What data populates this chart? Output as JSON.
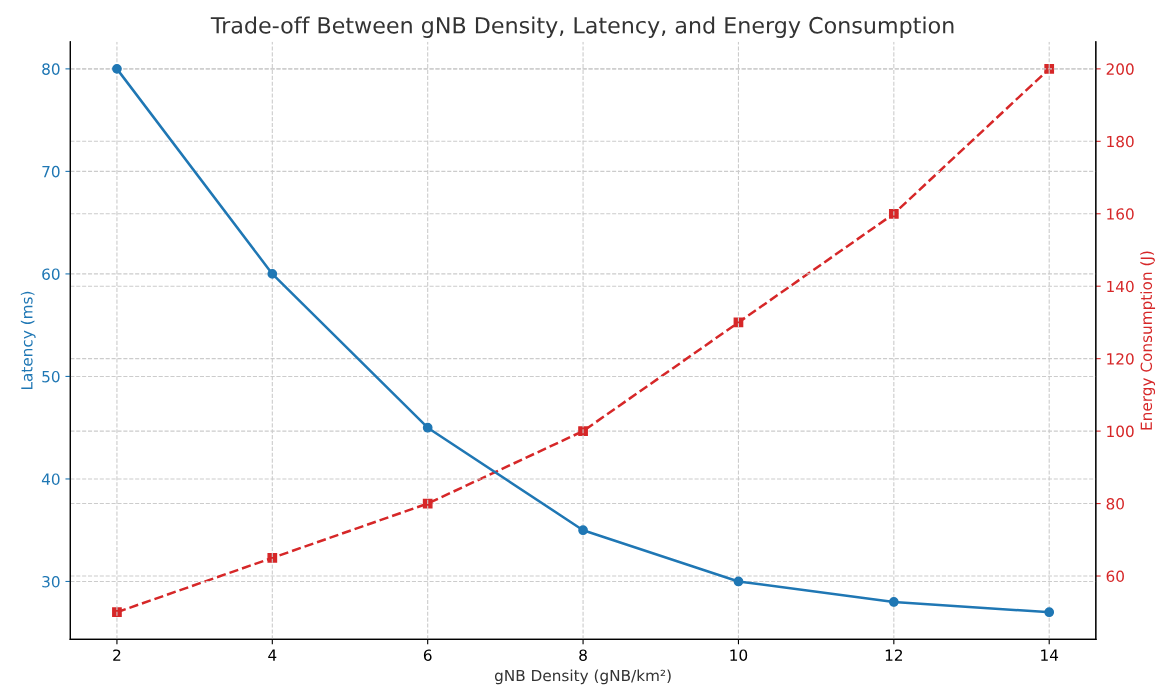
{
  "chart_data": {
    "type": "line",
    "title": "Trade-off Between gNB Density, Latency, and Energy Consumption",
    "xlabel": "gNB Density (gNB/km²)",
    "ylabel": "Latency (ms)",
    "y2label": "Energy Consumption (J)",
    "x": [
      2,
      4,
      6,
      8,
      10,
      12,
      14
    ],
    "series": [
      {
        "color": "#1f77b4",
        "values": [
          80,
          60,
          45,
          35,
          30,
          28,
          27
        ],
        "marker": "circle",
        "line_style": "solid"
      },
      {
        "color": "#d62728",
        "values": [
          50,
          65,
          80,
          100,
          130,
          160,
          200
        ],
        "marker": "square",
        "line_style": "dashed",
        "axis": "y2"
      }
    ],
    "xlim": [
      1.4,
      14.6
    ],
    "xticks": [
      2,
      4,
      6,
      8,
      10,
      12,
      14
    ],
    "ylim": [
      24.35,
      82.65
    ],
    "yticks": [
      30,
      40,
      50,
      60,
      70,
      80
    ],
    "y2lim": [
      42.5,
      207.5
    ],
    "y2ticks": [
      60,
      80,
      100,
      120,
      140,
      160,
      180,
      200
    ],
    "grid": true,
    "legend": false
  }
}
